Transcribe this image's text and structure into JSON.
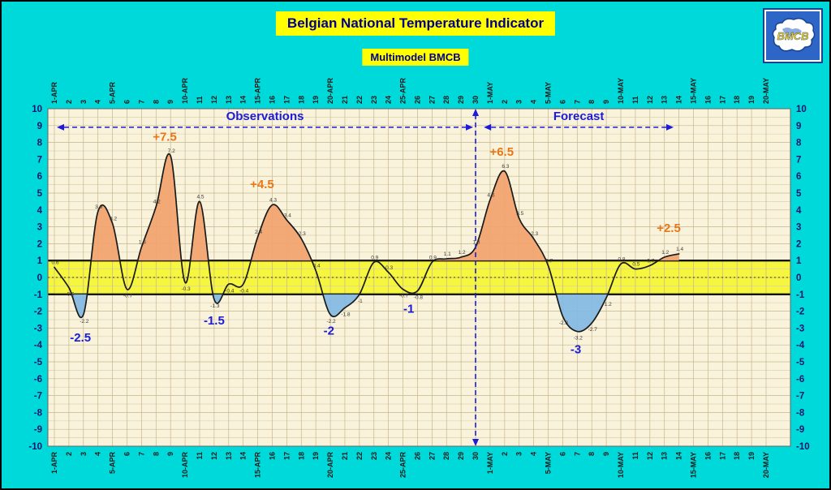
{
  "header": {
    "title": "Belgian National Temperature Indicator",
    "subtitle": "Multimodel BMCB"
  },
  "logo": {
    "text": "BMCB"
  },
  "chart_data": {
    "type": "line",
    "title": "Belgian National Temperature Indicator",
    "subtitle": "Multimodel BMCB",
    "xlabel": "",
    "ylabel": "",
    "ylim": [
      -10,
      10
    ],
    "grid": true,
    "plot_bg": "#faf3dc",
    "line_color": "#1a1a1a",
    "fill_above": "#f2a470",
    "fill_below": "#86b9e2",
    "band": {
      "from": -1,
      "to": 1,
      "color": "#f6f63e"
    },
    "divider_index": 29,
    "divider_color": "#1c1cd8",
    "categories": [
      "1-APR",
      "2",
      "3",
      "4",
      "5-APR",
      "6",
      "7",
      "8",
      "9",
      "10-APR",
      "11",
      "12",
      "13",
      "14",
      "15-APR",
      "16",
      "17",
      "18",
      "19",
      "20-APR",
      "21",
      "22",
      "23",
      "24",
      "25-APR",
      "26",
      "27",
      "28",
      "29",
      "30",
      "1-MAY",
      "2",
      "3",
      "4",
      "5-MAY",
      "6",
      "7",
      "8",
      "9",
      "10-MAY",
      "11",
      "12",
      "13",
      "14",
      "15-MAY",
      "16",
      "17",
      "18",
      "19",
      "20-MAY"
    ],
    "values": [
      0.6,
      -0.6,
      -2.2,
      3.9,
      3.2,
      -0.7,
      1.8,
      4.2,
      7.2,
      -0.3,
      4.5,
      -1.3,
      -0.4,
      -0.4,
      2.4,
      4.3,
      3.4,
      2.3,
      0.4,
      -2.2,
      -1.8,
      -1,
      0.9,
      0.3,
      -0.7,
      -0.8,
      0.9,
      1.1,
      1.2,
      1.8,
      4.6,
      6.3,
      3.5,
      2.3,
      0.7,
      -2.3,
      -3.2,
      -2.7,
      -1.2,
      0.8,
      0.5,
      0.7,
      1.2,
      1.4,
      null,
      null,
      null,
      null,
      null,
      null
    ],
    "regions": [
      {
        "label": "Observations",
        "from": 0,
        "to": 29
      },
      {
        "label": "Forecast",
        "from": 29.4,
        "to": 42.8
      }
    ],
    "annotations": [
      {
        "text": "+7.5",
        "day": 7.6,
        "value": 8.1,
        "color": "#e97614"
      },
      {
        "text": "+4.5",
        "day": 14.3,
        "value": 5.3,
        "color": "#e97614"
      },
      {
        "text": "+6.5",
        "day": 30.8,
        "value": 7.2,
        "color": "#e97614"
      },
      {
        "text": "+2.5",
        "day": 42.3,
        "value": 2.7,
        "color": "#e97614"
      },
      {
        "text": "-2.5",
        "day": 1.8,
        "value": -3.8,
        "color": "#1c1cd8"
      },
      {
        "text": "-1.5",
        "day": 11.0,
        "value": -2.8,
        "color": "#1c1cd8"
      },
      {
        "text": "-2",
        "day": 18.9,
        "value": -3.4,
        "color": "#1c1cd8"
      },
      {
        "text": "-1",
        "day": 24.4,
        "value": -2.1,
        "color": "#1c1cd8"
      },
      {
        "text": "-3",
        "day": 35.9,
        "value": -4.5,
        "color": "#1c1cd8"
      }
    ]
  }
}
